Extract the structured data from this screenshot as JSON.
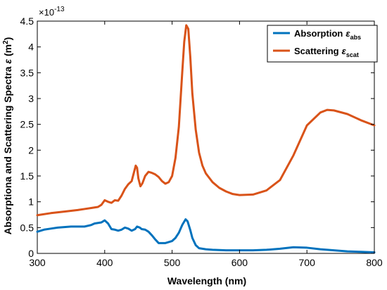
{
  "chart_data": {
    "type": "line",
    "xlabel": "Wavelength (nm)",
    "ylabel_main": "Absorptiona and Scattering Spectra ",
    "ylabel_symbol": "ε",
    "ylabel_unit": " (m",
    "ylabel_unit_sup": "2",
    "ylabel_unit_end": ")",
    "y_multiplier_base": "×10",
    "y_multiplier_exp": "-13",
    "xlim": [
      300,
      800
    ],
    "ylim": [
      0,
      4.5
    ],
    "x_ticks": [
      "300",
      "400",
      "500",
      "600",
      "700",
      "800"
    ],
    "y_ticks": [
      "0",
      "0.5",
      "1",
      "1.5",
      "2",
      "2.5",
      "3",
      "3.5",
      "4",
      "4.5"
    ],
    "grid": false,
    "legend_position": "top-right",
    "series": [
      {
        "name": "Absorption",
        "symbol": "ε",
        "subscript": "abs",
        "color": "#0072BD",
        "x": [
          300,
          310,
          320,
          330,
          340,
          350,
          360,
          370,
          380,
          385,
          390,
          395,
          400,
          405,
          410,
          415,
          420,
          425,
          430,
          435,
          440,
          445,
          448,
          452,
          455,
          460,
          465,
          470,
          475,
          480,
          490,
          500,
          505,
          510,
          515,
          520,
          523,
          527,
          530,
          535,
          540,
          550,
          560,
          580,
          600,
          620,
          640,
          660,
          680,
          700,
          720,
          740,
          760,
          780,
          800
        ],
        "y": [
          0.42,
          0.46,
          0.48,
          0.5,
          0.51,
          0.52,
          0.52,
          0.52,
          0.55,
          0.58,
          0.59,
          0.6,
          0.64,
          0.58,
          0.47,
          0.46,
          0.44,
          0.46,
          0.5,
          0.48,
          0.44,
          0.47,
          0.52,
          0.5,
          0.47,
          0.46,
          0.42,
          0.35,
          0.27,
          0.2,
          0.2,
          0.24,
          0.3,
          0.4,
          0.55,
          0.66,
          0.62,
          0.45,
          0.3,
          0.16,
          0.1,
          0.08,
          0.07,
          0.06,
          0.06,
          0.06,
          0.07,
          0.09,
          0.12,
          0.11,
          0.08,
          0.06,
          0.04,
          0.03,
          0.02
        ]
      },
      {
        "name": "Scattering",
        "symbol": "ε",
        "subscript": "scat",
        "color": "#D95319",
        "x": [
          300,
          320,
          340,
          360,
          370,
          380,
          390,
          395,
          400,
          405,
          410,
          415,
          420,
          425,
          430,
          435,
          440,
          443,
          446,
          448,
          450,
          453,
          456,
          460,
          465,
          470,
          475,
          480,
          485,
          490,
          495,
          500,
          505,
          510,
          515,
          518,
          521,
          524,
          527,
          530,
          535,
          540,
          545,
          550,
          560,
          570,
          580,
          590,
          600,
          620,
          640,
          660,
          680,
          700,
          720,
          730,
          740,
          760,
          780,
          800
        ],
        "y": [
          0.74,
          0.78,
          0.81,
          0.84,
          0.86,
          0.88,
          0.9,
          0.94,
          1.03,
          1.0,
          0.98,
          1.03,
          1.02,
          1.12,
          1.25,
          1.34,
          1.4,
          1.55,
          1.7,
          1.66,
          1.45,
          1.3,
          1.36,
          1.5,
          1.58,
          1.56,
          1.53,
          1.48,
          1.4,
          1.35,
          1.38,
          1.5,
          1.85,
          2.45,
          3.5,
          4.1,
          4.42,
          4.35,
          3.8,
          3.1,
          2.4,
          1.95,
          1.7,
          1.55,
          1.38,
          1.27,
          1.2,
          1.15,
          1.13,
          1.14,
          1.22,
          1.42,
          1.9,
          2.48,
          2.73,
          2.78,
          2.77,
          2.7,
          2.58,
          2.48
        ]
      }
    ]
  }
}
